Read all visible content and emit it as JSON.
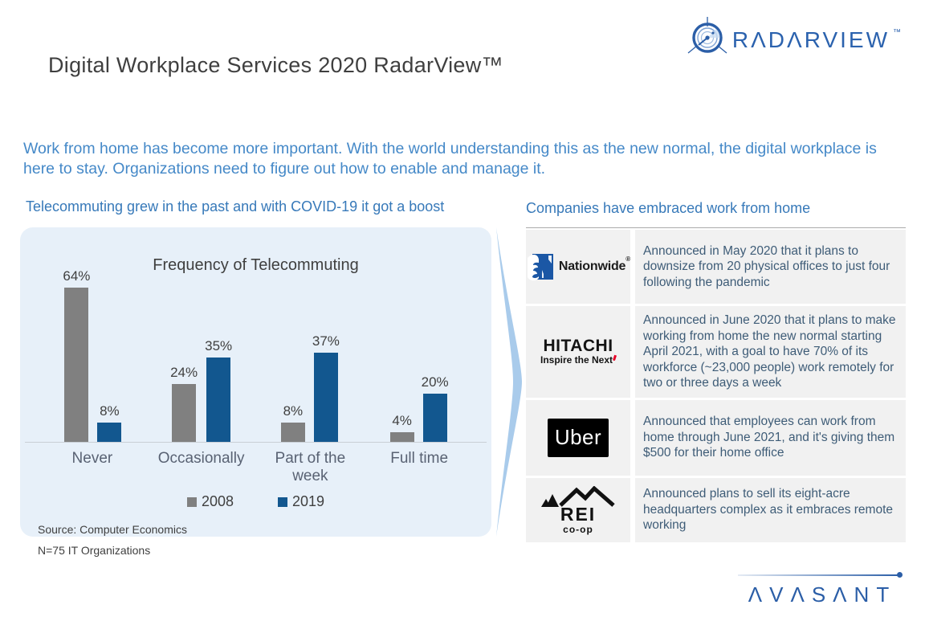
{
  "slide": {
    "title": "Digital Workplace Services 2020 RadarView™",
    "intro": "Work from home has become more important. With the world understanding this as the new normal, the digital workplace is here to stay. Organizations need to figure out how to enable and manage it."
  },
  "brand": {
    "radarview_text": "RADARVIEW",
    "radarview_display": "RΛDΛRVIEW",
    "radarview_tm": "™",
    "avasant_text": "AVASANT",
    "avasant_display": "ΛVΛSΛNT"
  },
  "left_section": {
    "heading": "Telecommuting grew in the past and with COVID-19 it got a boost",
    "source_line1": "Source: Computer Economics",
    "source_line2": "N=75 IT Organizations"
  },
  "chart_data": {
    "type": "bar",
    "title": "Frequency of Telecommuting",
    "categories": [
      "Never",
      "Occasionally",
      "Part of the week",
      "Full time"
    ],
    "series": [
      {
        "name": "2008",
        "color": "#808080",
        "values": [
          64,
          24,
          8,
          4
        ]
      },
      {
        "name": "2019",
        "color": "#12578F",
        "values": [
          8,
          35,
          37,
          20
        ]
      }
    ],
    "value_suffix": "%",
    "ylim": [
      0,
      70
    ],
    "gridlines": false,
    "legend_position": "bottom"
  },
  "right_section": {
    "heading": "Companies have embraced work from home",
    "rows": [
      {
        "company": "Nationwide",
        "logo_text": "Nationwide",
        "logo_reg": "®",
        "text": "Announced in May 2020 that it plans to downsize from 20 physical offices to just four following the pandemic"
      },
      {
        "company": "Hitachi",
        "logo_title": "HITACHI",
        "logo_tagline": "Inspire the Next",
        "text": "Announced in June 2020 that it plans to make working from home the new normal starting April 2021, with a goal to have 70% of its workforce (~23,000 people) work remotely for two or three days a week"
      },
      {
        "company": "Uber",
        "logo_text": "Uber",
        "text": "Announced that employees can work from home through June 2021, and it's giving them $500 for their home office"
      },
      {
        "company": "REI co-op",
        "logo_title": "REI",
        "logo_subtitle": "co-op",
        "text": "Announced plans to sell its eight-acre headquarters complex as it embraces remote working"
      }
    ]
  },
  "colors": {
    "heading_blue": "#3779B9",
    "paragraph_blue": "#4589C8",
    "panel_bg": "#E7F0F9",
    "bar_gray": "#808080",
    "bar_blue": "#12578F",
    "arrow_blue": "#A9CBEB",
    "row_bg": "#F1F1F1",
    "row_text": "#3E5C77",
    "brand_blue": "#2B5EA7"
  }
}
